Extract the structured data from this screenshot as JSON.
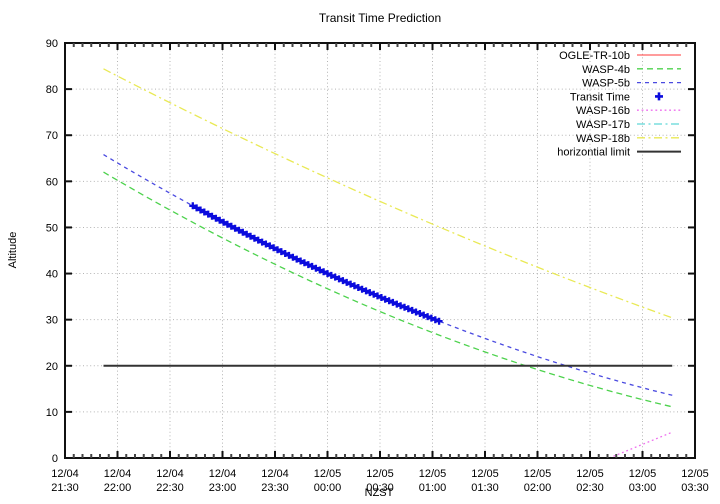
{
  "page": {
    "background": "#ffffff"
  },
  "chart_data": {
    "type": "line",
    "title": "Transit Time Prediction",
    "xlabel": "NZST",
    "ylabel": "Altitude",
    "ylim": [
      0,
      90
    ],
    "x_domain_minutes_from_2130": [
      0,
      360
    ],
    "grid": true,
    "legend_position": "top-right-inside",
    "y_ticks": [
      0,
      10,
      20,
      30,
      40,
      50,
      60,
      70,
      80,
      90
    ],
    "x_ticks": [
      {
        "t": 0,
        "date": "12/04",
        "time": "21:30"
      },
      {
        "t": 30,
        "date": "12/04",
        "time": "22:00"
      },
      {
        "t": 60,
        "date": "12/04",
        "time": "22:30"
      },
      {
        "t": 90,
        "date": "12/04",
        "time": "23:00"
      },
      {
        "t": 120,
        "date": "12/04",
        "time": "23:30"
      },
      {
        "t": 150,
        "date": "12/05",
        "time": "00:00"
      },
      {
        "t": 180,
        "date": "12/05",
        "time": "00:30"
      },
      {
        "t": 210,
        "date": "12/05",
        "time": "01:00"
      },
      {
        "t": 240,
        "date": "12/05",
        "time": "01:30"
      },
      {
        "t": 270,
        "date": "12/05",
        "time": "02:00"
      },
      {
        "t": 300,
        "date": "12/05",
        "time": "02:30"
      },
      {
        "t": 330,
        "date": "12/05",
        "time": "03:00"
      },
      {
        "t": 360,
        "date": "12/05",
        "time": "03:30"
      }
    ],
    "series": [
      {
        "name": "OGLE-TR-10b",
        "color": "#ff6262",
        "style": "solid",
        "plotted": false
      },
      {
        "name": "WASP-4b",
        "color": "#4dd24d",
        "style": "long-dash",
        "curve": {
          "t0": 22,
          "a0": 62.0,
          "t1": 347,
          "a1": 11.1,
          "sag": 5.5,
          "start_time": "21:52",
          "end_time": "03:17"
        }
      },
      {
        "name": "WASP-5b",
        "color": "#4a4ae0",
        "style": "short-dash",
        "curve": {
          "t0": 22,
          "a0": 65.8,
          "t1": 347,
          "a1": 13.6,
          "sag": 5.5,
          "start_time": "21:52",
          "end_time": "03:17"
        }
      },
      {
        "name": "Transit Time",
        "color": "#0b0bdd",
        "style": "points",
        "marker": "filled-plus",
        "transit": {
          "on": "WASP-5b",
          "t0": 73,
          "t1": 215,
          "step": 2.2,
          "start_time": "22:43",
          "end_time": "01:05",
          "alt_start": 56.2,
          "alt_end": 32.2
        }
      },
      {
        "name": "WASP-16b",
        "color": "#ee6fee",
        "style": "dotted",
        "curve": {
          "t0": 311,
          "a0": 0.0,
          "t1": 347,
          "a1": 5.6,
          "sag": 0,
          "start_time": "02:41",
          "end_time": "03:17"
        }
      },
      {
        "name": "WASP-17b",
        "color": "#5fd8d8",
        "style": "dash-dot",
        "plotted": false
      },
      {
        "name": "WASP-18b",
        "color": "#e9e955",
        "style": "dash-dot",
        "curve": {
          "t0": 22,
          "a0": 84.4,
          "t1": 347,
          "a1": 30.4,
          "sag": 2.5,
          "start_time": "21:52",
          "end_time": "03:17"
        }
      },
      {
        "name": "horizontial limit",
        "color": "#333333",
        "style": "solid",
        "curve": {
          "t0": 22,
          "a0": 20,
          "t1": 347,
          "a1": 20,
          "sag": 0,
          "start_time": "21:52",
          "end_time": "03:17"
        }
      }
    ],
    "colors": {
      "grid": "#b4b4b4",
      "frame": "#111111",
      "transit_marker": "#0b0bdd"
    }
  }
}
